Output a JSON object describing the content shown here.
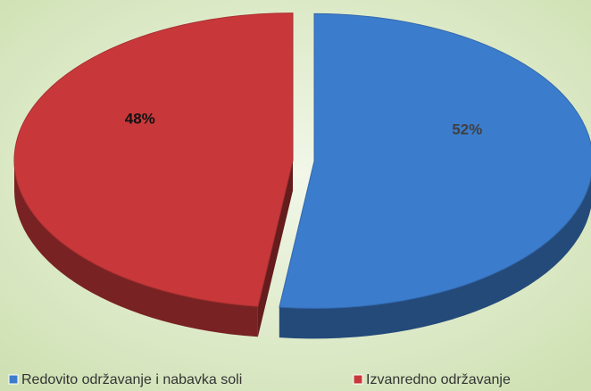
{
  "chart_data": {
    "type": "pie",
    "categories": [
      "Redovito održavanje i nabavka soli",
      "Izvanredno održavanje"
    ],
    "values": [
      52,
      48
    ],
    "value_labels": [
      "52%",
      "48%"
    ],
    "colors": [
      "#3c7ccc",
      "#c8383a"
    ],
    "legend": "bottom"
  }
}
